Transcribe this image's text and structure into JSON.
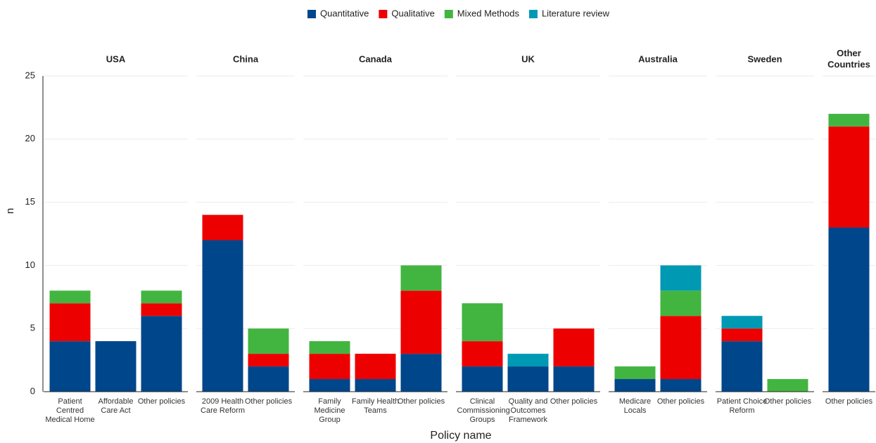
{
  "chart_data": {
    "type": "bar",
    "stacked": true,
    "x_label": "Policy name",
    "y_label": "n",
    "ylim": [
      0,
      25
    ],
    "yticks": [
      0,
      5,
      10,
      15,
      20,
      25
    ],
    "grid": true,
    "legend_position": "top",
    "series": [
      {
        "name": "Quantitative",
        "color": "#00468b"
      },
      {
        "name": "Qualitative",
        "color": "#ed0000"
      },
      {
        "name": "Mixed Methods",
        "color": "#42b540"
      },
      {
        "name": "Literature review",
        "color": "#0099b4"
      }
    ],
    "facets": [
      {
        "title": "USA",
        "categories": [
          "Patient Centred Medical Home",
          "Affordable Care Act",
          "Other policies"
        ],
        "values": [
          [
            4,
            4,
            6
          ],
          [
            3,
            0,
            1
          ],
          [
            1,
            0,
            1
          ],
          [
            0,
            0,
            0
          ]
        ]
      },
      {
        "title": "China",
        "categories": [
          "2009 Health Care Reform",
          "Other policies"
        ],
        "values": [
          [
            12,
            2
          ],
          [
            2,
            1
          ],
          [
            0,
            2
          ],
          [
            0,
            0
          ]
        ]
      },
      {
        "title": "Canada",
        "categories": [
          "Family Medicine Group",
          "Family Health Teams",
          "Other policies"
        ],
        "values": [
          [
            1,
            1,
            3
          ],
          [
            2,
            2,
            5
          ],
          [
            1,
            0,
            2
          ],
          [
            0,
            0,
            0
          ]
        ]
      },
      {
        "title": "UK",
        "categories": [
          "Clinical Commissioning Groups",
          "Quality and Outcomes Framework",
          "Other policies"
        ],
        "values": [
          [
            2,
            2,
            2
          ],
          [
            2,
            0,
            3
          ],
          [
            3,
            0,
            0
          ],
          [
            0,
            1,
            0
          ]
        ]
      },
      {
        "title": "Australia",
        "categories": [
          "Medicare Locals",
          "Other policies"
        ],
        "values": [
          [
            1,
            1
          ],
          [
            0,
            5
          ],
          [
            1,
            2
          ],
          [
            0,
            2
          ]
        ]
      },
      {
        "title": "Sweden",
        "categories": [
          "Patient Choice Reform",
          "Other policies"
        ],
        "values": [
          [
            4,
            0
          ],
          [
            1,
            0
          ],
          [
            0,
            1
          ],
          [
            1,
            0
          ]
        ]
      },
      {
        "title": "Other Countries",
        "categories": [
          "Other policies"
        ],
        "values": [
          [
            13
          ],
          [
            8
          ],
          [
            1
          ],
          [
            0
          ]
        ]
      }
    ]
  }
}
